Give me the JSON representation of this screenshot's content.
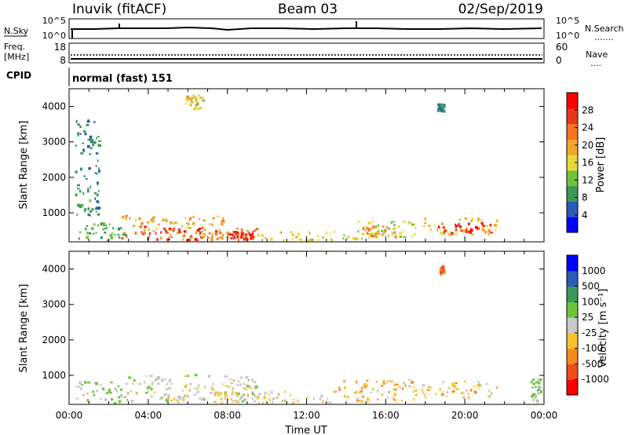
{
  "header": {
    "station": "Inuvik (fitACF)",
    "beam": "Beam 03",
    "date": "02/Sep/2019"
  },
  "strips": {
    "nsky": {
      "label": "N.Sky",
      "ticks": [
        "10^5",
        "10^0"
      ],
      "right_label": "N.Search",
      "right_ticks": [
        "10^5",
        "10^0"
      ],
      "right_key": "......."
    },
    "freq": {
      "label_line1": "Freq.",
      "label_line2": "[MHz]",
      "ticks": [
        "18",
        "8"
      ],
      "right_label": "Nave",
      "right_ticks": [
        "60",
        "0"
      ],
      "right_key": "...."
    },
    "cpid": {
      "label": "CPID",
      "value": "normal (fast) 151"
    }
  },
  "colors": {
    "power_scale": [
      "#0000ff",
      "#2b5ab8",
      "#3a9a5a",
      "#6ec23c",
      "#e8d83a",
      "#f2a52e",
      "#f5761e",
      "#e8381c",
      "#ff0000"
    ],
    "velocity_scale": [
      "#ff0000",
      "#f24c1c",
      "#f58a1e",
      "#f7c22c",
      "#c8c8c8",
      "#6ec23c",
      "#3a9a5a",
      "#2b5ab8",
      "#0000ff"
    ],
    "ground_scatter": "#c8c8c8"
  },
  "chart_data": [
    {
      "type": "heatmap",
      "name": "power",
      "xlabel": "",
      "ylabel": "Slant Range [km]",
      "x_ticks": [],
      "y_ticks": [
        "4000",
        "3000",
        "2000",
        "1000"
      ],
      "xlim_hours": [
        0,
        24
      ],
      "ylim_km": [
        180,
        4500
      ],
      "colorbar": {
        "label": "Power [dB]",
        "ticks": [
          "28",
          "24",
          "20",
          "16",
          "12",
          "8",
          "4"
        ],
        "range": [
          0,
          32
        ]
      },
      "regions": [
        {
          "t0": 0.2,
          "t1": 3.0,
          "r0": 200,
          "r1": 700,
          "value": 10
        },
        {
          "t0": 2.6,
          "t1": 7.8,
          "r0": 200,
          "r1": 900,
          "value": 20
        },
        {
          "t0": 3.7,
          "t1": 6.8,
          "r0": 200,
          "r1": 600,
          "value": 29
        },
        {
          "t0": 7.0,
          "t1": 9.5,
          "r0": 200,
          "r1": 550,
          "value": 23
        },
        {
          "t0": 8.0,
          "t1": 9.3,
          "r0": 250,
          "r1": 450,
          "value": 28
        },
        {
          "t0": 9.5,
          "t1": 13.5,
          "r0": 200,
          "r1": 450,
          "value": 16
        },
        {
          "t0": 13.8,
          "t1": 17.5,
          "r0": 250,
          "r1": 800,
          "value": 14
        },
        {
          "t0": 14.8,
          "t1": 16.5,
          "r0": 300,
          "r1": 600,
          "value": 21
        },
        {
          "t0": 17.8,
          "t1": 21.7,
          "r0": 350,
          "r1": 850,
          "value": 18
        },
        {
          "t0": 18.6,
          "t1": 21.3,
          "r0": 400,
          "r1": 700,
          "value": 29
        },
        {
          "t0": 0.3,
          "t1": 1.5,
          "r0": 900,
          "r1": 3600,
          "value": 8
        },
        {
          "t0": 5.8,
          "t1": 6.8,
          "r0": 3900,
          "r1": 4300,
          "value": 16
        },
        {
          "t0": 18.6,
          "t1": 18.9,
          "r0": 3850,
          "r1": 4050,
          "value": 8
        }
      ]
    },
    {
      "type": "heatmap",
      "name": "velocity",
      "xlabel": "Time UT",
      "ylabel": "Slant Range [km]",
      "x_ticks": [
        "00:00",
        "04:00",
        "08:00",
        "12:00",
        "16:00",
        "20:00",
        "00:00"
      ],
      "y_ticks": [
        "4000",
        "3000",
        "2000",
        "1000"
      ],
      "xlim_hours": [
        0,
        24
      ],
      "ylim_km": [
        180,
        4500
      ],
      "colorbar": {
        "label": "Velocity [m s⁻¹]",
        "ticks": [
          "1000",
          "500",
          "100",
          "25",
          "-25",
          "-100",
          "-500",
          "-1000"
        ],
        "range": [
          -1200,
          1200
        ]
      },
      "regions": [
        {
          "t0": 0.2,
          "t1": 3.0,
          "r0": 200,
          "r1": 800,
          "value": 150
        },
        {
          "t0": 2.8,
          "t1": 9.5,
          "r0": 200,
          "r1": 1000,
          "value": 0
        },
        {
          "t0": 7.0,
          "t1": 13.5,
          "r0": 200,
          "r1": 550,
          "value": -120
        },
        {
          "t0": 13.6,
          "t1": 17.6,
          "r0": 250,
          "r1": 850,
          "value": -300
        },
        {
          "t0": 17.8,
          "t1": 21.7,
          "r0": 350,
          "r1": 850,
          "value": -250
        },
        {
          "t0": 23.3,
          "t1": 23.8,
          "r0": 200,
          "r1": 900,
          "value": 200
        },
        {
          "t0": 18.7,
          "t1": 18.9,
          "r0": 3850,
          "r1": 4050,
          "value": -700
        }
      ]
    }
  ],
  "axis": {
    "y_label": "Slant Range [km]",
    "x_label": "Time UT"
  }
}
